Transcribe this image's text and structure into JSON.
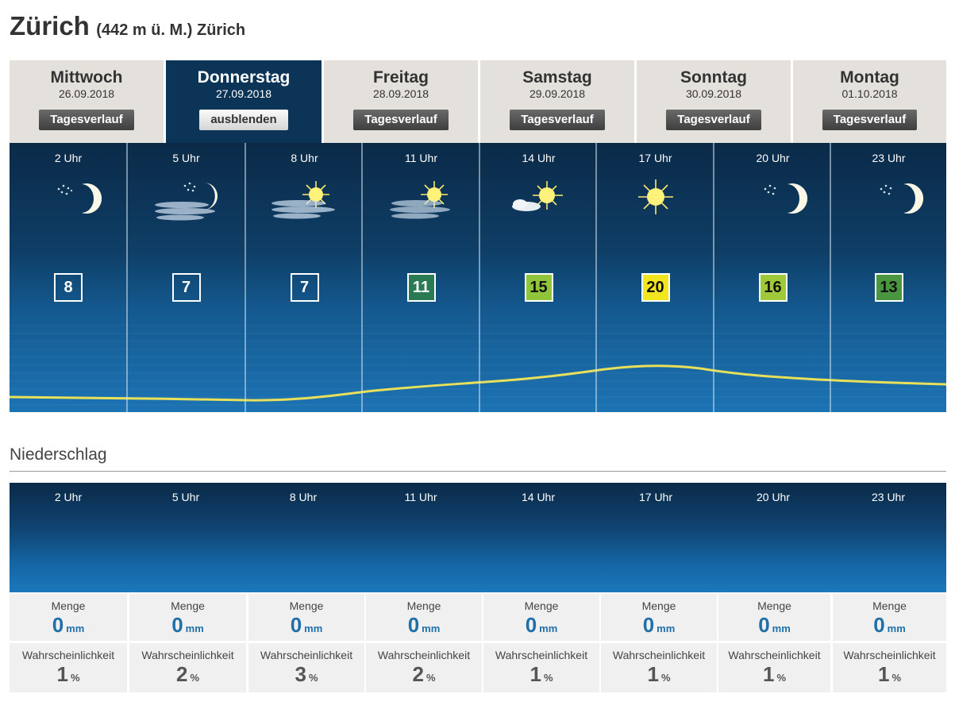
{
  "location": {
    "city": "Zürich",
    "details": "(442 m ü. M.) Zürich"
  },
  "days": [
    {
      "name": "Mittwoch",
      "date": "26.09.2018",
      "button": "Tagesverlauf"
    },
    {
      "name": "Donnerstag",
      "date": "27.09.2018",
      "button": "ausblenden"
    },
    {
      "name": "Freitag",
      "date": "28.09.2018",
      "button": "Tagesverlauf"
    },
    {
      "name": "Samstag",
      "date": "29.09.2018",
      "button": "Tagesverlauf"
    },
    {
      "name": "Sonntag",
      "date": "30.09.2018",
      "button": "Tagesverlauf"
    },
    {
      "name": "Montag",
      "date": "01.10.2018",
      "button": "Tagesverlauf"
    }
  ],
  "active_day_index": 1,
  "hours": [
    {
      "label": "2 Uhr",
      "icon": "clear-night-moon-icon",
      "temp": "8"
    },
    {
      "label": "5 Uhr",
      "icon": "fog-night-moon-icon",
      "temp": "7"
    },
    {
      "label": "8 Uhr",
      "icon": "fog-sun-icon",
      "temp": "7"
    },
    {
      "label": "11 Uhr",
      "icon": "fog-sun-icon",
      "temp": "11"
    },
    {
      "label": "14 Uhr",
      "icon": "partly-cloudy-sun-icon",
      "temp": "15"
    },
    {
      "label": "17 Uhr",
      "icon": "sunny-icon",
      "temp": "20"
    },
    {
      "label": "20 Uhr",
      "icon": "clear-night-moon-icon",
      "temp": "16"
    },
    {
      "label": "23 Uhr",
      "icon": "clear-night-moon-icon",
      "temp": "13"
    }
  ],
  "temperature_scale_colors": {
    "11": "#2a7a54",
    "13": "#4a9640",
    "15": "#8fc43b",
    "16": "#a0c93a",
    "20": "#f2e61f"
  },
  "precipitation": {
    "title": "Niederschlag",
    "amount_label": "Menge",
    "amount_unit": "mm",
    "probability_label": "Wahrscheinlichkeit",
    "probability_unit": "%",
    "hours": [
      {
        "label": "2 Uhr",
        "amount": "0",
        "probability": "1"
      },
      {
        "label": "5 Uhr",
        "amount": "0",
        "probability": "2"
      },
      {
        "label": "8 Uhr",
        "amount": "0",
        "probability": "3"
      },
      {
        "label": "11 Uhr",
        "amount": "0",
        "probability": "2"
      },
      {
        "label": "14 Uhr",
        "amount": "0",
        "probability": "1"
      },
      {
        "label": "17 Uhr",
        "amount": "0",
        "probability": "1"
      },
      {
        "label": "20 Uhr",
        "amount": "0",
        "probability": "1"
      },
      {
        "label": "23 Uhr",
        "amount": "0",
        "probability": "1"
      }
    ]
  }
}
